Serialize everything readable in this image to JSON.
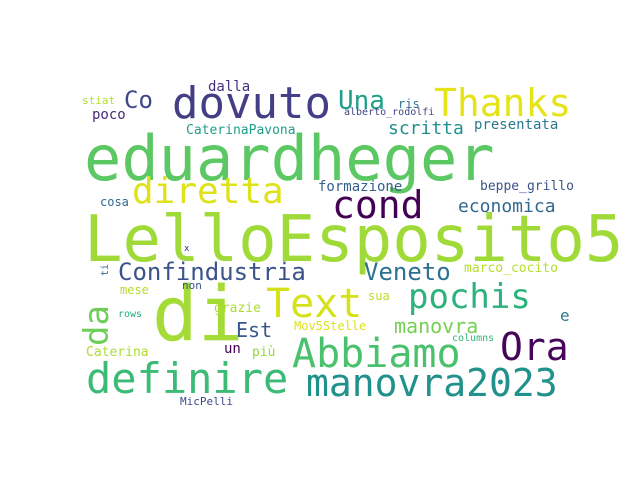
{
  "words": [
    {
      "text": "eduardheger",
      "color": "#5cc863"
    },
    {
      "text": "LelloEsposito5",
      "color": "#a0da39"
    },
    {
      "text": "di",
      "color": "#a5db36"
    },
    {
      "text": "dovuto",
      "color": "#433e85"
    },
    {
      "text": "Thanks",
      "color": "#e5e419"
    },
    {
      "text": "Text",
      "color": "#d5e21a"
    },
    {
      "text": "pochis",
      "color": "#2db27d"
    },
    {
      "text": "Abbiamo",
      "color": "#4ac16d"
    },
    {
      "text": "definire",
      "color": "#3bbb75"
    },
    {
      "text": "manovra2023",
      "color": "#21918c"
    },
    {
      "text": "diretta",
      "color": "#dde318"
    },
    {
      "text": "cond",
      "color": "#440154"
    },
    {
      "text": "Ora",
      "color": "#450559"
    },
    {
      "text": "da",
      "color": "#6ece58"
    },
    {
      "text": "Confindustria",
      "color": "#3b528b"
    },
    {
      "text": "Veneto",
      "color": "#2c728e"
    },
    {
      "text": "Co",
      "color": "#3e4989"
    },
    {
      "text": "Una",
      "color": "#1fa088"
    },
    {
      "text": "economica",
      "color": "#31688e"
    },
    {
      "text": "manovra",
      "color": "#75d054"
    },
    {
      "text": "scritta",
      "color": "#21918c"
    },
    {
      "text": "Est",
      "color": "#38588c"
    },
    {
      "text": "formazione",
      "color": "#355f8d"
    },
    {
      "text": "presentata",
      "color": "#2a788e"
    },
    {
      "text": "CaterinaPavona",
      "color": "#1f9e89"
    },
    {
      "text": "dalla",
      "color": "#46307e"
    },
    {
      "text": "poco",
      "color": "#482878"
    },
    {
      "text": "stiat",
      "color": "#b5de2b"
    },
    {
      "text": "ris",
      "color": "#2c728e"
    },
    {
      "text": "alberto_rodolfi",
      "color": "#414487"
    },
    {
      "text": "beppe_grillo",
      "color": "#3b528b"
    },
    {
      "text": "cosa",
      "color": "#31688e"
    },
    {
      "text": "marco_cocito",
      "color": "#b8de29"
    },
    {
      "text": "e",
      "color": "#2a788e"
    },
    {
      "text": "mese",
      "color": "#b5de2b"
    },
    {
      "text": "non",
      "color": "#3b528b"
    },
    {
      "text": "grazie",
      "color": "#addc30"
    },
    {
      "text": "sua",
      "color": "#bade28"
    },
    {
      "text": "Mov5Stelle",
      "color": "#dce319"
    },
    {
      "text": "rows",
      "color": "#25ab82"
    },
    {
      "text": "un",
      "color": "#440154"
    },
    {
      "text": "più",
      "color": "#93d741"
    },
    {
      "text": "Caterina",
      "color": "#addc30"
    },
    {
      "text": "columns",
      "color": "#35b779"
    },
    {
      "text": "MicPelli",
      "color": "#3e4989"
    },
    {
      "text": "ti",
      "color": "#31688e"
    },
    {
      "text": "x",
      "color": "#472d7b"
    }
  ]
}
